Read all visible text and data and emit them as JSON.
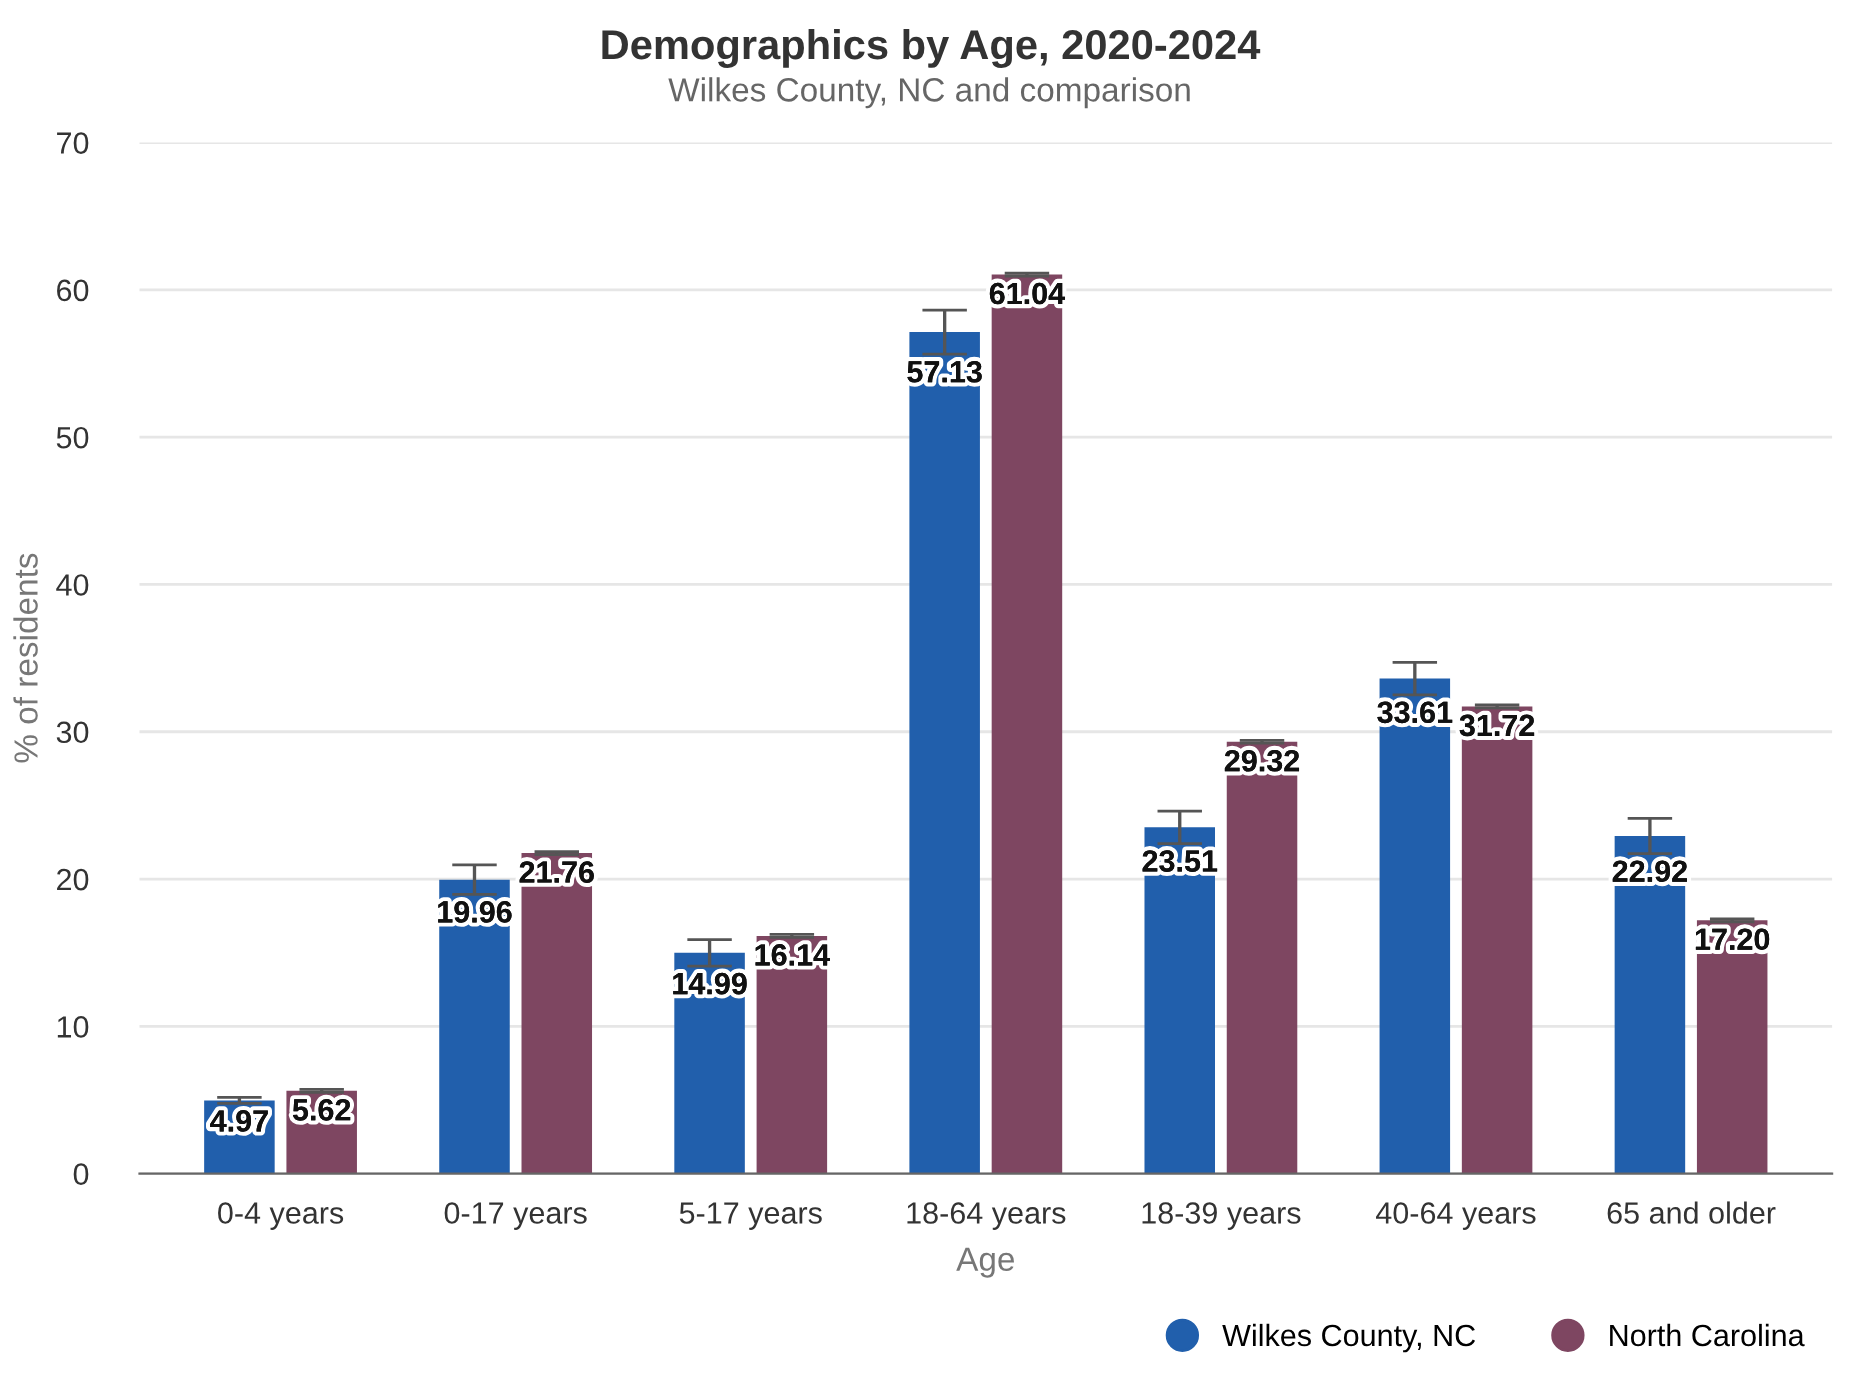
{
  "chart_data": {
    "type": "bar",
    "title": "Demographics by Age, 2020-2024",
    "subtitle": "Wilkes County, NC and comparison",
    "xlabel": "Age",
    "ylabel": "% of residents",
    "categories": [
      "0-4 years",
      "0-17 years",
      "5-17 years",
      "18-64 years",
      "18-39 years",
      "40-64 years",
      "65 and older"
    ],
    "series": [
      {
        "name": "Wilkes County, NC",
        "color": "#215fac",
        "values": [
          4.97,
          19.96,
          14.99,
          57.13,
          23.51,
          33.61,
          22.92
        ],
        "value_labels": [
          "4.97",
          "19.96",
          "14.99",
          "57.13",
          "23.51",
          "33.61",
          "22.92"
        ],
        "errors": [
          0.2,
          1.0,
          0.9,
          1.5,
          1.1,
          1.1,
          1.2
        ]
      },
      {
        "name": "North Carolina",
        "color": "#7e4661",
        "values": [
          5.62,
          21.76,
          16.14,
          61.04,
          29.32,
          31.72,
          17.2
        ],
        "value_labels": [
          "5.62",
          "21.76",
          "16.14",
          "61.04",
          "29.32",
          "31.72",
          "17.20"
        ],
        "errors": [
          0.1,
          0.1,
          0.1,
          0.1,
          0.1,
          0.1,
          0.1
        ]
      }
    ],
    "ylim": [
      0,
      70
    ],
    "yticks": [
      0,
      10,
      20,
      30,
      40,
      50,
      60,
      70
    ],
    "grid": "y",
    "legend": "bottom right"
  }
}
